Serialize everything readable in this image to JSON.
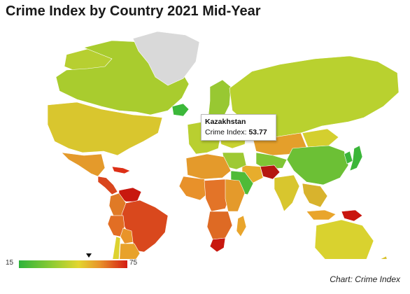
{
  "title": "Crime Index by Country 2021 Mid-Year",
  "tooltip": {
    "country": "Kazakhstan",
    "label": "Crime Index:",
    "value": "53.77"
  },
  "legend": {
    "min": "15",
    "max": "75",
    "marker_value": 53.77
  },
  "credit": "Chart: Crime Index",
  "colors": {
    "no_data": "#d9d9d9",
    "low": "#2eb33a",
    "mid_low": "#8ccb33",
    "mid": "#e3d62f",
    "mid_high": "#e8912a",
    "high": "#d41b13"
  },
  "regions": [
    {
      "name": "Canada",
      "color": "#a9cc2e"
    },
    {
      "name": "Greenland",
      "color": "#d9d9d9"
    },
    {
      "name": "Alaska",
      "color": "#b7cf31"
    },
    {
      "name": "United States",
      "color": "#d9c62e"
    },
    {
      "name": "Mexico",
      "color": "#e49a2b"
    },
    {
      "name": "Central America",
      "color": "#d9461e"
    },
    {
      "name": "Caribbean",
      "color": "#dd2f16"
    },
    {
      "name": "Venezuela",
      "color": "#c8180f"
    },
    {
      "name": "Colombia",
      "color": "#e07a26"
    },
    {
      "name": "Brazil",
      "color": "#d9481d"
    },
    {
      "name": "Peru",
      "color": "#e26e24"
    },
    {
      "name": "Bolivia",
      "color": "#e99429"
    },
    {
      "name": "Argentina",
      "color": "#e8a22b"
    },
    {
      "name": "Chile",
      "color": "#ddd22f"
    },
    {
      "name": "Iceland",
      "color": "#3cb83a"
    },
    {
      "name": "Scandinavia",
      "color": "#98c832"
    },
    {
      "name": "Western Europe",
      "color": "#b9cf30"
    },
    {
      "name": "Eastern Europe",
      "color": "#c9d230"
    },
    {
      "name": "Russia",
      "color": "#b9d12f"
    },
    {
      "name": "Kazakhstan",
      "color": "#e49f2b"
    },
    {
      "name": "Central Asia",
      "color": "#7fc535"
    },
    {
      "name": "Afghanistan",
      "color": "#b5170f"
    },
    {
      "name": "Iran",
      "color": "#e7ad2c"
    },
    {
      "name": "Saudi Arabia",
      "color": "#4fbb37"
    },
    {
      "name": "Middle East",
      "color": "#9ec933"
    },
    {
      "name": "China",
      "color": "#6cc035"
    },
    {
      "name": "Mongolia",
      "color": "#d4cf2f"
    },
    {
      "name": "Japan",
      "color": "#3bb639"
    },
    {
      "name": "Korea",
      "color": "#3bb639"
    },
    {
      "name": "India",
      "color": "#d8c62e"
    },
    {
      "name": "Southeast Asia",
      "color": "#d8b32d"
    },
    {
      "name": "Indonesia",
      "color": "#e9a52c"
    },
    {
      "name": "Papua New Guinea",
      "color": "#c9160f"
    },
    {
      "name": "Australia",
      "color": "#d9d22f"
    },
    {
      "name": "New Zealand",
      "color": "#d9c22e"
    },
    {
      "name": "North Africa",
      "color": "#e49a2b"
    },
    {
      "name": "West Africa",
      "color": "#e8912a"
    },
    {
      "name": "Central Africa",
      "color": "#e37428"
    },
    {
      "name": "East Africa",
      "color": "#e49a2b"
    },
    {
      "name": "Southern Africa",
      "color": "#de6a24"
    },
    {
      "name": "South Africa",
      "color": "#c8180f"
    },
    {
      "name": "Madagascar",
      "color": "#e9a52c"
    }
  ]
}
